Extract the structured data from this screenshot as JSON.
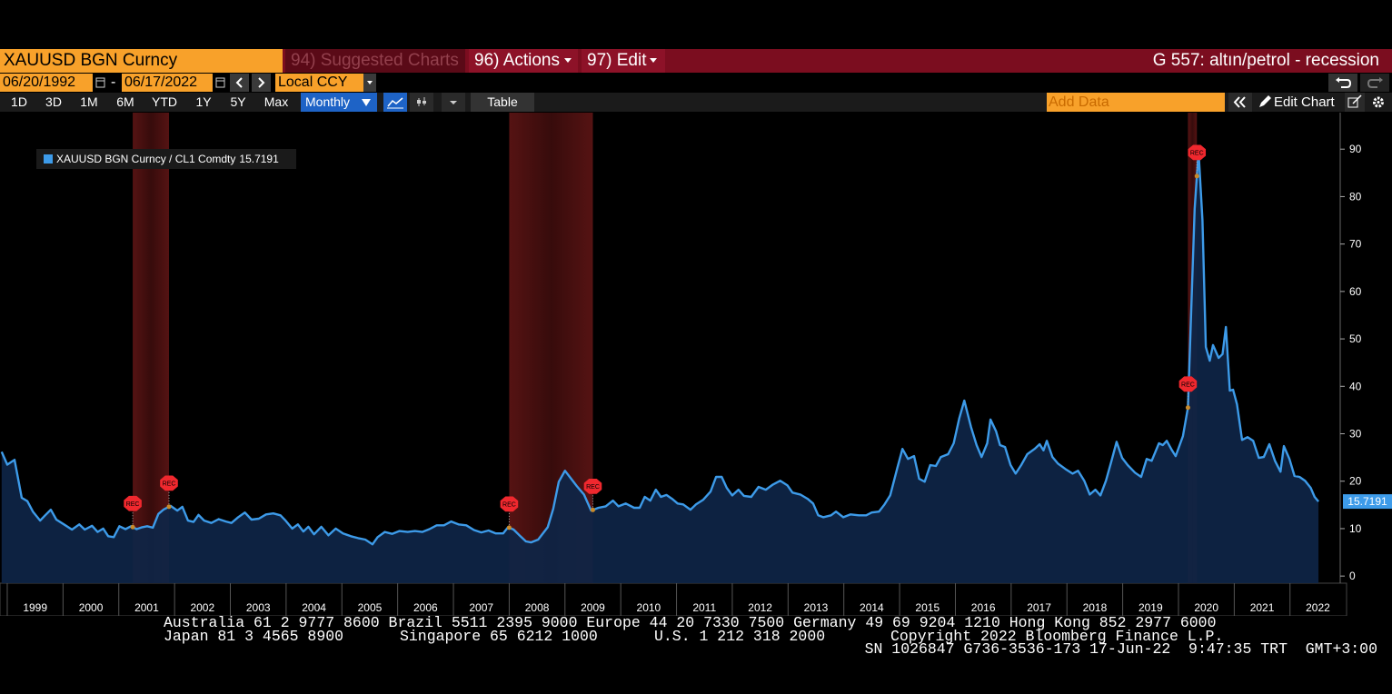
{
  "toolbar": {
    "ticker": "XAUUSD BGN Curncy",
    "menu": [
      "94) Suggested Charts",
      "96) Actions",
      "97) Edit"
    ],
    "chart_name": "G 557: altın/petrol - recession",
    "start_date": "06/20/1992",
    "end_date": "06/17/2022",
    "currency": "Local CCY",
    "periods": [
      "1D",
      "3D",
      "1M",
      "6M",
      "YTD",
      "1Y",
      "5Y",
      "Max"
    ],
    "frequency": "Monthly",
    "table_button": "Table",
    "add_data_placeholder": "Add Data",
    "edit_chart": "Edit Chart"
  },
  "chart_data": {
    "type": "area",
    "legend": "upper left",
    "y_axis_side": "right",
    "xlim": [
      1998.87,
      2022.9
    ],
    "ylim": [
      -1.5,
      97.7
    ],
    "xticks": [
      1999,
      2000,
      2001,
      2002,
      2003,
      2004,
      2005,
      2006,
      2007,
      2008,
      2009,
      2010,
      2011,
      2012,
      2013,
      2014,
      2015,
      2016,
      2017,
      2018,
      2019,
      2020,
      2021,
      2022
    ],
    "yticks": [
      0,
      10,
      20,
      30,
      40,
      50,
      60,
      70,
      80,
      90
    ],
    "recession_label": "REC",
    "recessions": [
      {
        "start": 2001.25,
        "end": 2001.9
      },
      {
        "start": 2008.0,
        "end": 2009.5
      },
      {
        "start": 2020.17,
        "end": 2020.33
      }
    ],
    "x": [
      1998.9,
      1999.0,
      1999.13,
      1999.26,
      1999.36,
      1999.46,
      1999.59,
      1999.68,
      1999.78,
      1999.88,
      2000.03,
      2000.16,
      2000.29,
      2000.39,
      2000.52,
      2000.62,
      2000.72,
      2000.81,
      2000.91,
      2001.01,
      2001.12,
      2001.22,
      2001.32,
      2001.42,
      2001.51,
      2001.61,
      2001.71,
      2001.8,
      2001.93,
      2002.05,
      2002.14,
      2002.24,
      2002.34,
      2002.43,
      2002.53,
      2002.66,
      2002.79,
      2002.92,
      2003.02,
      2003.13,
      2003.26,
      2003.38,
      2003.51,
      2003.64,
      2003.77,
      2003.9,
      2003.99,
      2004.11,
      2004.21,
      2004.31,
      2004.4,
      2004.5,
      2004.63,
      2004.76,
      2004.89,
      2005.02,
      2005.16,
      2005.29,
      2005.42,
      2005.55,
      2005.64,
      2005.77,
      2005.9,
      2006.03,
      2006.18,
      2006.31,
      2006.44,
      2006.57,
      2006.7,
      2006.83,
      2006.96,
      2007.09,
      2007.23,
      2007.37,
      2007.5,
      2007.63,
      2007.76,
      2007.89,
      2007.98,
      2008.08,
      2008.2,
      2008.3,
      2008.39,
      2008.52,
      2008.69,
      2008.79,
      2008.89,
      2009.0,
      2009.1,
      2009.21,
      2009.34,
      2009.47,
      2009.6,
      2009.73,
      2009.86,
      2009.96,
      2010.09,
      2010.24,
      2010.34,
      2010.43,
      2010.53,
      2010.63,
      2010.72,
      2010.82,
      2010.92,
      2011.02,
      2011.12,
      2011.25,
      2011.35,
      2011.48,
      2011.61,
      2011.71,
      2011.81,
      2011.9,
      2012.0,
      2012.11,
      2012.21,
      2012.34,
      2012.47,
      2012.6,
      2012.73,
      2012.86,
      2012.99,
      2013.08,
      2013.22,
      2013.35,
      2013.45,
      2013.54,
      2013.63,
      2013.77,
      2013.86,
      2013.99,
      2014.12,
      2014.27,
      2014.4,
      2014.5,
      2014.63,
      2014.73,
      2014.83,
      2014.96,
      2015.05,
      2015.15,
      2015.26,
      2015.35,
      2015.45,
      2015.55,
      2015.65,
      2015.74,
      2015.87,
      2015.97,
      2016.07,
      2016.16,
      2016.28,
      2016.38,
      2016.47,
      2016.57,
      2016.63,
      2016.73,
      2016.8,
      2016.89,
      2016.99,
      2017.08,
      2017.18,
      2017.29,
      2017.42,
      2017.51,
      2017.58,
      2017.64,
      2017.74,
      2017.84,
      2017.97,
      2018.1,
      2018.2,
      2018.31,
      2018.41,
      2018.51,
      2018.6,
      2018.7,
      2018.8,
      2018.89,
      2018.99,
      2019.09,
      2019.22,
      2019.33,
      2019.43,
      2019.52,
      2019.65,
      2019.72,
      2019.79,
      2019.88,
      2019.95,
      2020.08,
      2020.17,
      2020.29,
      2020.36,
      2020.43,
      2020.49,
      2020.56,
      2020.62,
      2020.72,
      2020.79,
      2020.85,
      2020.92,
      2020.98,
      2021.05,
      2021.14,
      2021.24,
      2021.34,
      2021.44,
      2021.53,
      2021.63,
      2021.73,
      2021.83,
      2021.89,
      2021.99,
      2022.08,
      2022.17,
      2022.27,
      2022.37,
      2022.44,
      2022.51
    ],
    "series": [
      {
        "name": "XAUUSD BGN Curncy / CL1 Comdty",
        "color": "#3d9be9",
        "fill": "#0e2546",
        "values": [
          26.2,
          23.5,
          24.5,
          16.5,
          15.8,
          13.6,
          11.7,
          12.8,
          14.0,
          11.9,
          10.8,
          9.8,
          10.9,
          9.8,
          10.6,
          9.3,
          10.0,
          8.4,
          8.2,
          10.5,
          9.9,
          10.5,
          9.9,
          10.3,
          10.5,
          10.2,
          13.1,
          14.0,
          14.8,
          13.8,
          14.6,
          11.7,
          11.4,
          12.9,
          11.7,
          11.2,
          12.0,
          11.5,
          11.2,
          12.3,
          13.4,
          11.9,
          12.1,
          13.0,
          13.2,
          12.8,
          11.7,
          10.0,
          10.9,
          9.4,
          10.4,
          8.8,
          10.4,
          8.6,
          10.0,
          9.0,
          8.4,
          8.0,
          7.7,
          6.7,
          8.2,
          9.3,
          8.9,
          9.5,
          9.3,
          9.5,
          9.3,
          9.9,
          10.7,
          10.7,
          11.5,
          10.9,
          10.7,
          9.7,
          9.2,
          9.6,
          9.0,
          9.0,
          10.3,
          9.8,
          8.4,
          7.3,
          7.1,
          7.7,
          10.3,
          14.2,
          19.9,
          22.2,
          20.7,
          19.0,
          17.2,
          13.8,
          14.4,
          14.7,
          15.9,
          14.7,
          15.3,
          14.4,
          14.4,
          16.7,
          15.9,
          18.2,
          16.7,
          17.1,
          16.3,
          15.3,
          15.1,
          14.0,
          15.1,
          16.1,
          17.8,
          20.9,
          20.9,
          18.6,
          17.0,
          18.2,
          16.9,
          16.7,
          18.8,
          18.2,
          19.3,
          20.1,
          19.1,
          17.6,
          17.2,
          16.3,
          15.3,
          12.8,
          12.4,
          12.8,
          13.6,
          12.4,
          13.0,
          12.8,
          12.8,
          13.4,
          13.6,
          15.1,
          17.0,
          22.8,
          26.8,
          24.7,
          25.3,
          20.5,
          19.9,
          23.4,
          23.2,
          25.1,
          25.7,
          28.0,
          33.3,
          37.0,
          31.4,
          27.6,
          25.1,
          28.0,
          33.0,
          30.5,
          27.6,
          27.2,
          23.4,
          21.6,
          23.4,
          25.7,
          26.8,
          27.8,
          26.5,
          28.5,
          25.1,
          23.7,
          22.6,
          21.6,
          22.2,
          20.1,
          17.2,
          18.2,
          17.0,
          20.1,
          24.3,
          28.3,
          24.9,
          23.4,
          21.8,
          20.9,
          24.7,
          24.3,
          28.0,
          27.6,
          28.5,
          26.6,
          25.3,
          29.5,
          35.5,
          77.4,
          89.5,
          75.0,
          48.3,
          45.4,
          48.7,
          46.0,
          46.8,
          52.5,
          39.1,
          39.3,
          36.2,
          28.7,
          29.3,
          28.5,
          24.9,
          25.1,
          27.8,
          24.3,
          22.0,
          27.4,
          24.7,
          21.1,
          20.9,
          20.1,
          18.6,
          16.7,
          15.7191
        ]
      }
    ]
  },
  "footer": {
    "line1": "Australia 61 2 9777 8600 Brazil 5511 2395 9000 Europe 44 20 7330 7500 Germany 49 69 9204 1210 Hong Kong 852 2977 6000",
    "line2": [
      "Japan 81 3 4565 8900",
      "Singapore 65 6212 1000",
      "U.S. 1 212 318 2000",
      "Copyright 2022 Bloomberg Finance L.P."
    ],
    "line3": "SN 1026847 G736-3536-173 17-Jun-22  9:47:35 TRT  GMT+3:00"
  }
}
